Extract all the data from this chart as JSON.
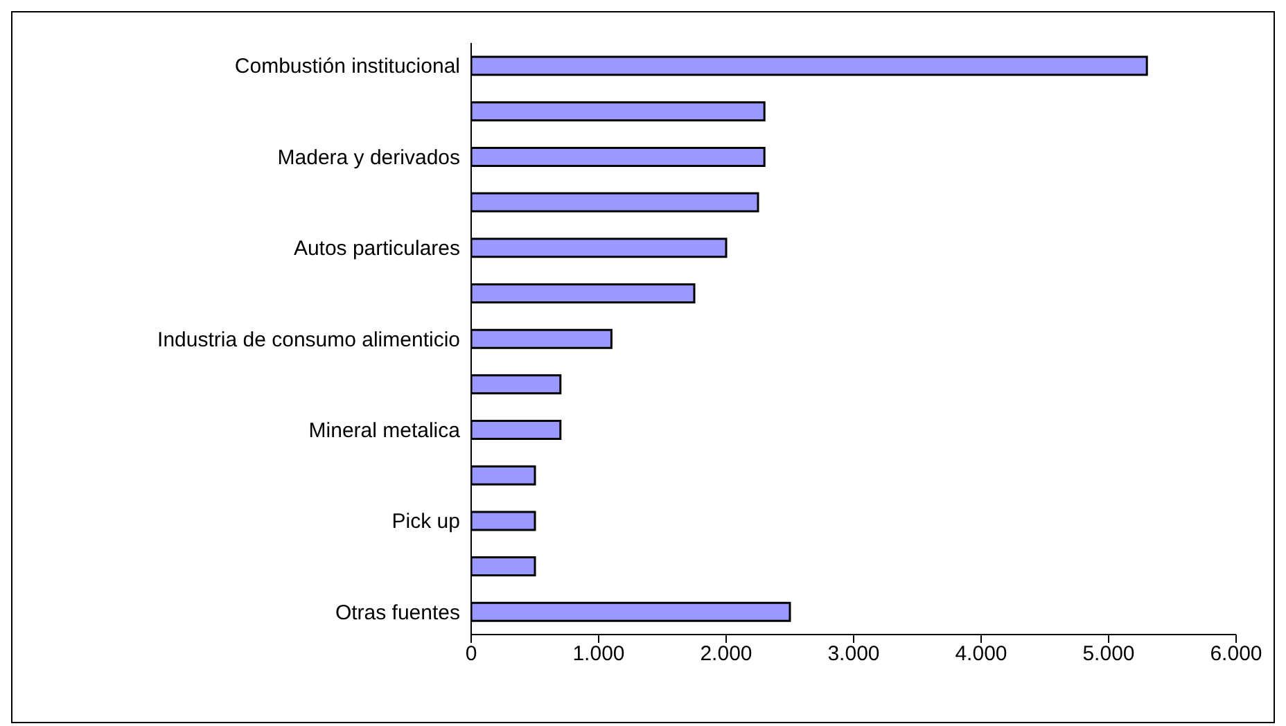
{
  "chart_data": {
    "type": "bar",
    "orientation": "horizontal",
    "categories": [
      "Combustión institucional",
      null,
      "Madera y derivados",
      null,
      "Autos particulares",
      null,
      "Industria de consumo alimenticio",
      null,
      "Mineral metalica",
      null,
      "Pick up",
      null,
      "Otras fuentes"
    ],
    "values": [
      5300,
      2300,
      2300,
      2250,
      2000,
      1750,
      1100,
      700,
      700,
      500,
      500,
      500,
      2500
    ],
    "color": "#9999ff",
    "xlim": [
      0,
      6000
    ],
    "xticks": [
      0,
      {
        "value": 1000,
        "label": "1.000"
      },
      {
        "value": 2000,
        "label": "2.000"
      },
      {
        "value": 3000,
        "label": "3.000"
      },
      {
        "value": 4000,
        "label": "4.000"
      },
      {
        "value": 5000,
        "label": "5.000"
      },
      {
        "value": 6000,
        "label": "6.000"
      }
    ],
    "grid": false,
    "legend": false
  }
}
